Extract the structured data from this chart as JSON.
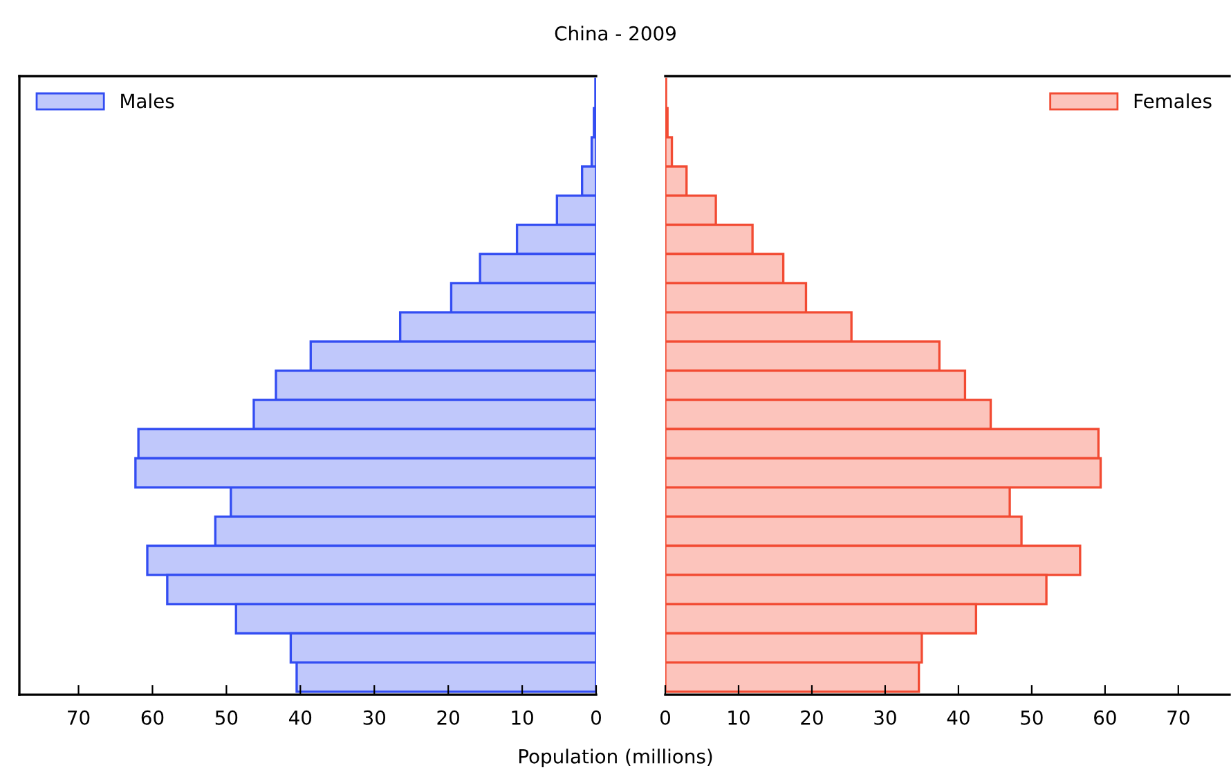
{
  "chart_data": [
    {
      "type": "bar",
      "orientation": "horizontal",
      "title": "China - 2009",
      "categories": [
        null,
        null,
        null,
        null,
        null,
        null,
        null,
        null,
        null,
        null,
        null,
        null,
        null,
        null,
        null,
        null,
        null,
        null,
        null,
        null,
        null
      ],
      "series": [
        {
          "name": "Males",
          "color": "#c0c8fb",
          "values": [
            0.1,
            0.3,
            0.6,
            1.9,
            5.3,
            10.7,
            15.7,
            19.6,
            26.5,
            38.6,
            43.3,
            46.3,
            61.9,
            62.3,
            49.4,
            51.5,
            60.7,
            58.0,
            48.7,
            41.3,
            40.5
          ]
        }
      ],
      "xlim": [
        78,
        0
      ],
      "xticks": [
        70,
        60,
        50,
        40,
        30,
        20,
        10,
        0
      ],
      "tick_labels": "x",
      "legend": "top left",
      "grid": false
    },
    {
      "type": "bar",
      "orientation": "horizontal",
      "xlabel": "Population (millions)",
      "categories": [
        null,
        null,
        null,
        null,
        null,
        null,
        null,
        null,
        null,
        null,
        null,
        null,
        null,
        null,
        null,
        null,
        null,
        null,
        null,
        null,
        null
      ],
      "series": [
        {
          "name": "Females",
          "color": "#fcc4bc",
          "values": [
            0.1,
            0.3,
            0.9,
            2.9,
            6.9,
            11.9,
            16.1,
            19.2,
            25.4,
            37.4,
            40.9,
            44.4,
            59.1,
            59.4,
            47.0,
            48.6,
            56.6,
            52.0,
            42.4,
            35.0,
            34.6
          ]
        }
      ],
      "xlim": [
        0,
        77
      ],
      "xticks": [
        0,
        10,
        20,
        30,
        40,
        50,
        60,
        70
      ],
      "tick_labels": "x",
      "legend": "top right",
      "grid": false
    }
  ]
}
